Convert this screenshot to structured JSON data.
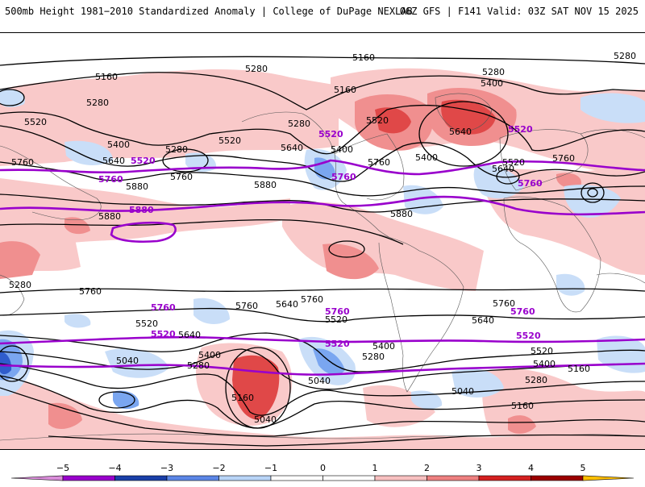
{
  "header": {
    "left_title": "500mb Height 1981−2010 Standardized Anomaly | College of DuPage NEXLAB",
    "right_title": "06Z GFS | F141 Valid: 03Z SAT NOV 15 2025"
  },
  "map": {
    "contour_labels": {
      "l5160_top": "5160",
      "l5160_a": "5160",
      "l5160_b": "5160",
      "l5160_s1": "5160",
      "l5160_s2": "5160",
      "l5160_s3": "5160",
      "l5280_a": "5280",
      "l5280_b": "5280",
      "l5280_c": "5280",
      "l5280_d": "5280",
      "l5280_e": "5280",
      "l5280_f": "5280",
      "l5280_s1": "5280",
      "l5280_s2": "5280",
      "l5280_s3": "5280",
      "l5400_a": "5400",
      "l5400_b": "5400",
      "l5400_c": "5400",
      "l5400_d": "5400",
      "l5400_s1": "5400",
      "l5400_s2": "5400",
      "l5400_s3": "5400",
      "l5520_a": "5520",
      "l5520_b": "5520",
      "l5520_c": "5520",
      "l5520_d": "5520",
      "l5520_s1": "5520",
      "l5520_s2": "5520",
      "l5520_s3": "5520",
      "l5640_a": "5640",
      "l5640_b": "5640",
      "l5640_c": "5640",
      "l5640_d": "5640",
      "l5640_s1": "5640",
      "l5640_s2": "5640",
      "l5640_s3": "5640",
      "l5760_a": "5760",
      "l5760_b": "5760",
      "l5760_c": "5760",
      "l5760_s1": "5760",
      "l5760_s2": "5760",
      "l5760_s3": "5760",
      "l5880_a": "5880",
      "l5880_b": "5880",
      "l5880_c": "5880",
      "l5880_d": "5880",
      "l5040_a": "5040",
      "l5040_b": "5040",
      "l5040_c": "5040",
      "l5040_d": "5040"
    },
    "highlight_labels": {
      "p5520_n1": "5520",
      "p5520_n2": "5520",
      "p5520_n3": "5520",
      "p5760_n1": "5760",
      "p5760_n2": "5760",
      "p5760_n3": "5760",
      "p5880": "5880",
      "p5760_s1": "5760",
      "p5760_s2": "5760",
      "p5760_s3": "5760",
      "p5520_s1": "5520",
      "p5520_s2": "5520",
      "p5520_s3": "5520"
    },
    "colors": {
      "ocean": "#ffffff",
      "anom_pos_1": "#f9c9c9",
      "anom_pos_2": "#f08f8f",
      "anom_pos_3": "#e04848",
      "anom_neg_1": "#c9def8",
      "anom_neg_2": "#7aa6f0",
      "anom_neg_3": "#2f5ccc",
      "highlight_contour": "#9900cc",
      "contour": "#000000",
      "coast": "#555555"
    }
  },
  "colorbar": {
    "ticks": [
      "−5",
      "−4",
      "−3",
      "−2",
      "−1",
      "0",
      "1",
      "2",
      "3",
      "4",
      "5"
    ],
    "colors": [
      "#d98cd9",
      "#9900cc",
      "#1a3fa8",
      "#5b86e6",
      "#b8d4f7",
      "#ffffff",
      "#ffffff",
      "#f8c0c0",
      "#ee8080",
      "#d42020",
      "#9b0000",
      "#ffbf00"
    ]
  }
}
